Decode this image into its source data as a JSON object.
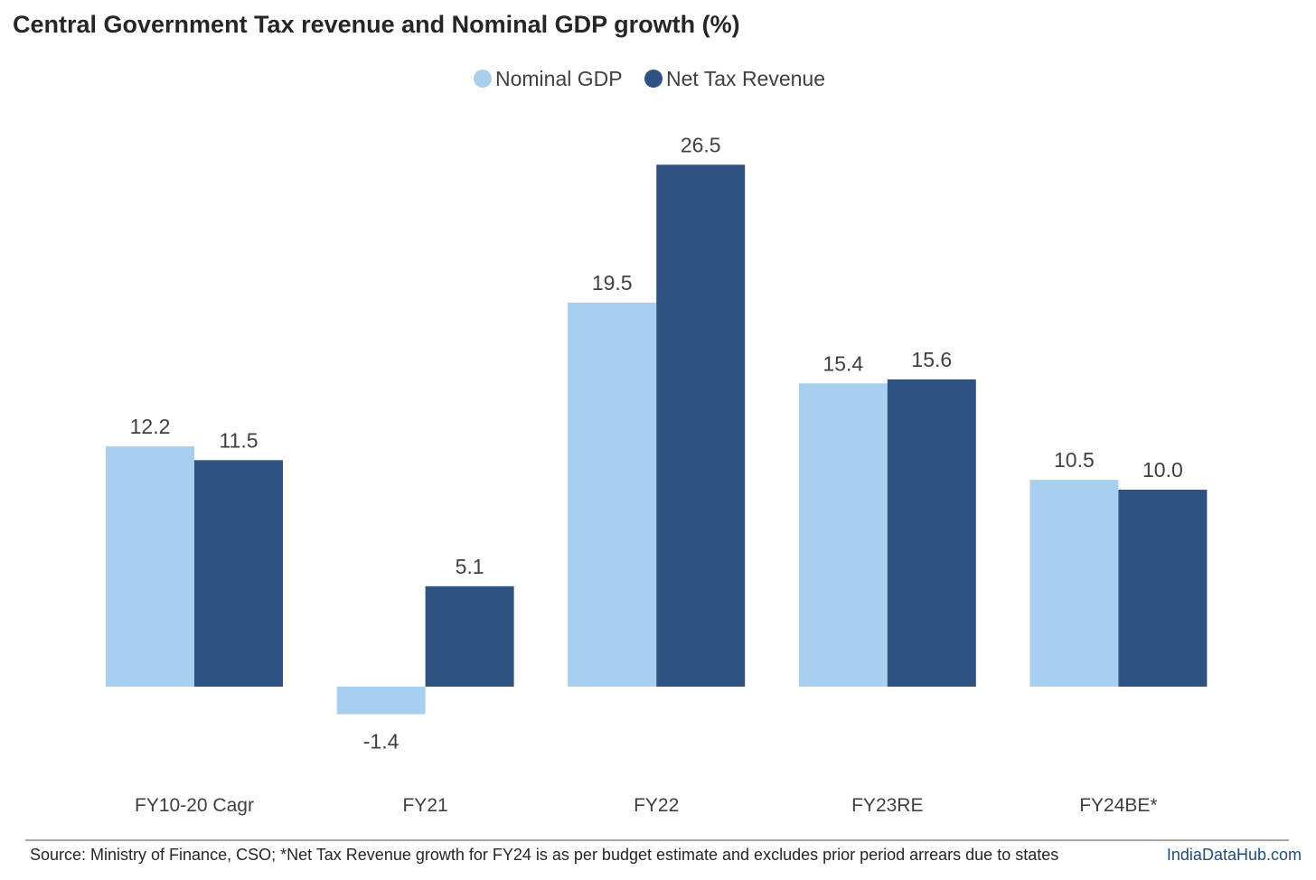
{
  "title": "Central Government Tax revenue and Nominal GDP growth (%)",
  "footer": {
    "source": "Source: Ministry of Finance, CSO; *Net Tax Revenue growth for FY24 is as per budget estimate and excludes prior period arrears due to states",
    "brand": "IndiaDataHub.com"
  },
  "colors": {
    "nominal_gdp": "#a9cfef",
    "net_tax_revenue": "#2e5383"
  },
  "chart_data": {
    "type": "bar",
    "title": "Central Government Tax revenue and Nominal GDP growth (%)",
    "categories": [
      "FY10-20 Cagr",
      "FY21",
      "FY22",
      "FY23RE",
      "FY24BE*"
    ],
    "series": [
      {
        "name": "Nominal GDP",
        "values": [
          12.2,
          -1.4,
          19.5,
          15.4,
          10.5
        ],
        "color": "#a9cfef"
      },
      {
        "name": "Net Tax Revenue",
        "values": [
          11.5,
          5.1,
          26.5,
          15.6,
          10.0
        ],
        "color": "#2e5383"
      }
    ],
    "data_labels": true,
    "legend": "top-center",
    "grid": false,
    "xlabel": "",
    "ylabel": ""
  }
}
